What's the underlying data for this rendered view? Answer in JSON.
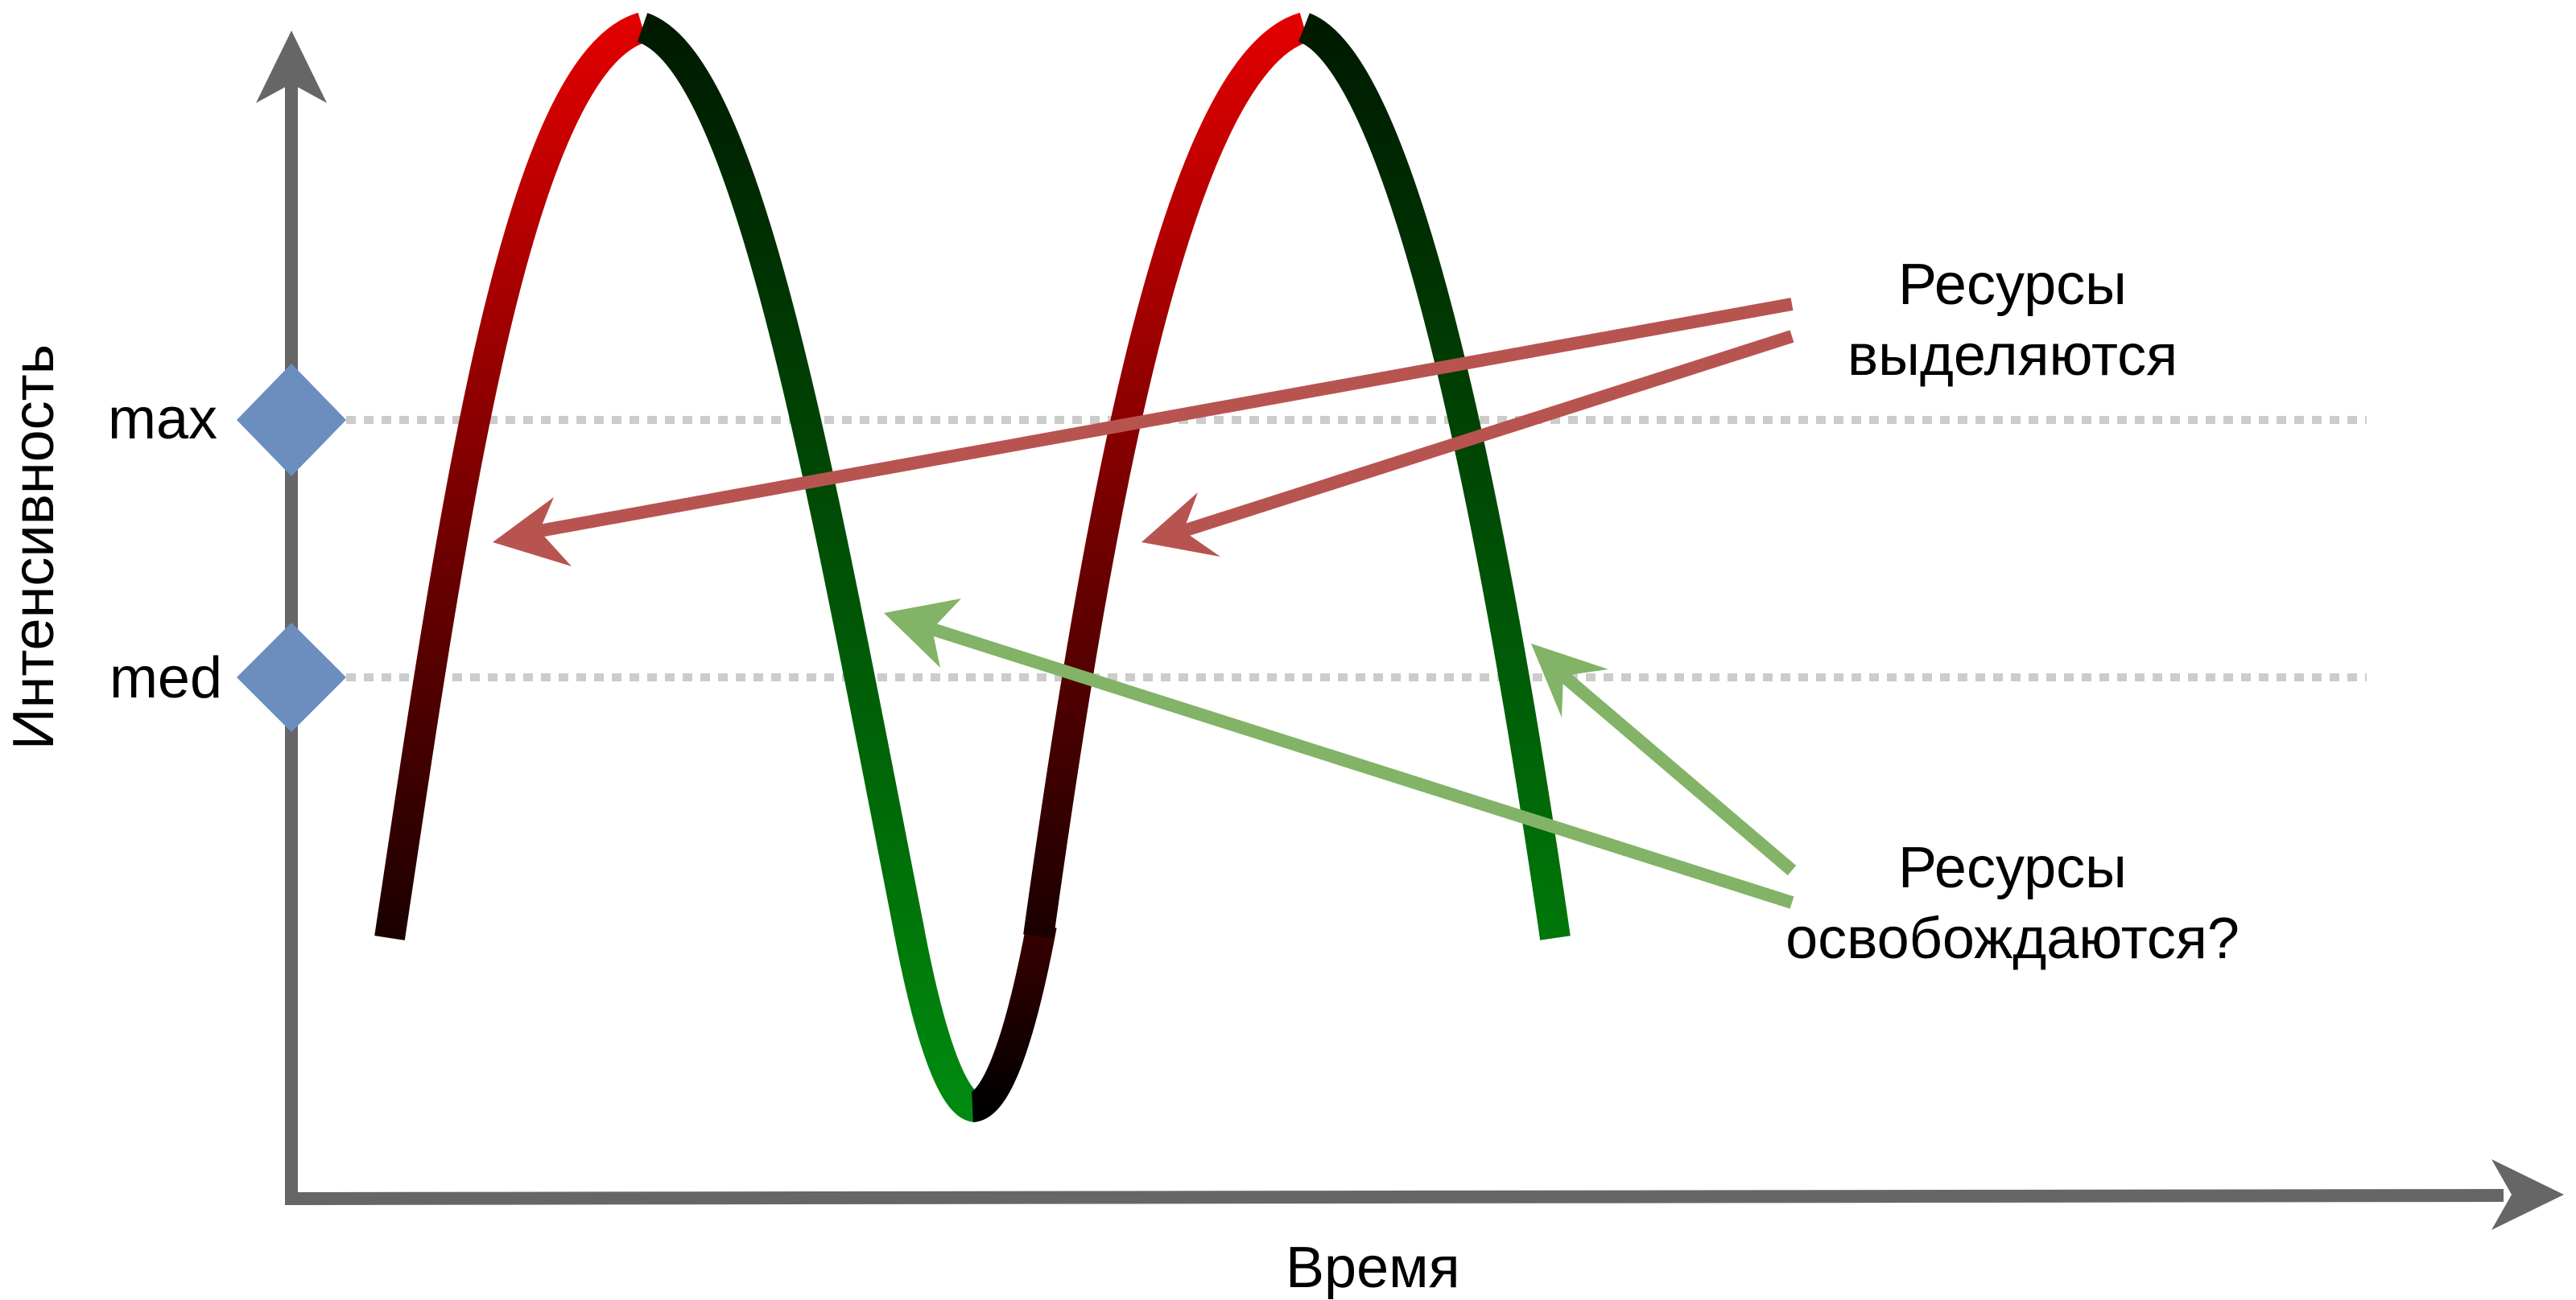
{
  "axes": {
    "x_title": "Время",
    "y_title": "Интенсивность",
    "y_levels": [
      {
        "label": "max"
      },
      {
        "label": "med"
      }
    ],
    "axis_color": "#666666",
    "marker_color": "#6c8ebf",
    "guide_color": "#cccccc"
  },
  "annotations": {
    "allocated": {
      "line1": "Ресурсы",
      "line2": "выделяются",
      "color": "#b85450"
    },
    "freed": {
      "line1": "Ресурсы",
      "line2": "освобождаются?",
      "color": "#82b366"
    }
  },
  "curve": {
    "rising_colors": [
      "#1a0000",
      "#e00000"
    ],
    "falling_colors": [
      "#001a00",
      "#00770a"
    ]
  }
}
